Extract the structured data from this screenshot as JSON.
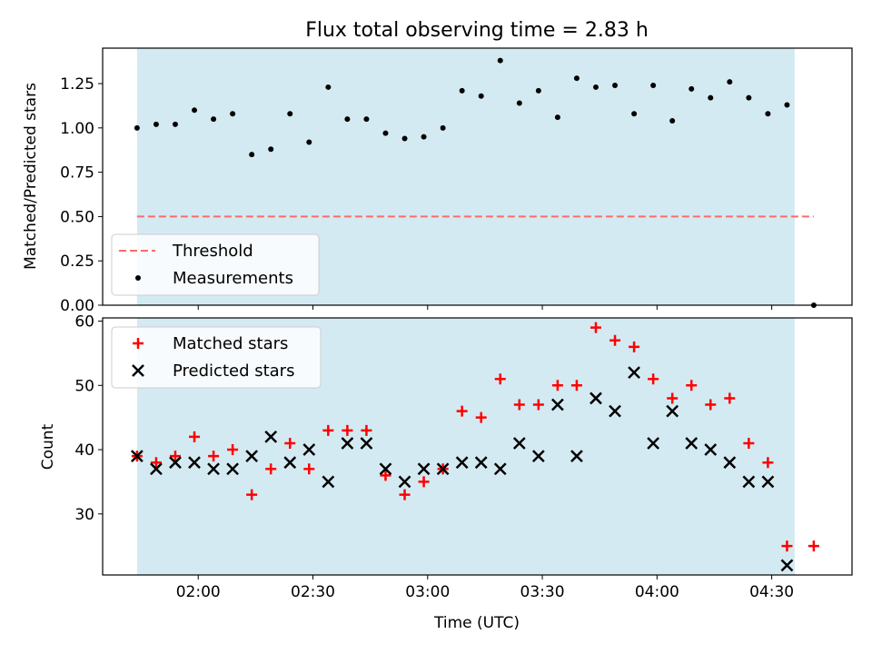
{
  "colors": {
    "span": "#add8e6",
    "threshold": "#ff6a6a",
    "matched": "#ff0000",
    "predicted": "#000000",
    "measurement": "#000000"
  },
  "chart_data": [
    {
      "type": "scatter",
      "title": "Flux total observing time = 2.83 h",
      "xlabel": "",
      "ylabel": "Matched/Predicted stars",
      "xlim": [
        "01:35",
        "04:51"
      ],
      "ylim": [
        0,
        1.45
      ],
      "yticks": [
        0.0,
        0.25,
        0.5,
        0.75,
        1.0,
        1.25
      ],
      "ytick_labels": [
        "0.00",
        "0.25",
        "0.50",
        "0.75",
        "1.00",
        "1.25"
      ],
      "shaded_span": [
        "01:44",
        "04:36"
      ],
      "legend": {
        "placement": "lower-left",
        "entries": [
          "Threshold",
          "Measurements"
        ]
      },
      "series": [
        {
          "name": "Threshold",
          "style": "dashed-line",
          "x": [
            "01:44",
            "04:41"
          ],
          "y": [
            0.5,
            0.5
          ]
        },
        {
          "name": "Measurements",
          "style": "dot",
          "x": [
            "01:44",
            "01:49",
            "01:54",
            "01:59",
            "02:04",
            "02:09",
            "02:14",
            "02:19",
            "02:24",
            "02:29",
            "02:34",
            "02:39",
            "02:44",
            "02:49",
            "02:54",
            "02:59",
            "03:04",
            "03:09",
            "03:14",
            "03:19",
            "03:24",
            "03:29",
            "03:34",
            "03:39",
            "03:44",
            "03:49",
            "03:54",
            "03:59",
            "04:04",
            "04:09",
            "04:14",
            "04:19",
            "04:24",
            "04:29",
            "04:34",
            "04:41"
          ],
          "y": [
            1.0,
            1.02,
            1.02,
            1.1,
            1.05,
            1.08,
            0.85,
            0.88,
            1.08,
            0.92,
            1.23,
            1.05,
            1.05,
            0.97,
            0.94,
            0.95,
            1.0,
            1.21,
            1.18,
            1.38,
            1.14,
            1.21,
            1.06,
            1.28,
            1.23,
            1.24,
            1.08,
            1.24,
            1.04,
            1.22,
            1.17,
            1.26,
            1.17,
            1.08,
            1.13,
            0.0
          ]
        }
      ]
    },
    {
      "type": "scatter",
      "title": "",
      "xlabel": "Time (UTC)",
      "ylabel": "Count",
      "xlim": [
        "01:35",
        "04:51"
      ],
      "ylim": [
        20.5,
        60.5
      ],
      "yticks": [
        30,
        40,
        50,
        60
      ],
      "ytick_labels": [
        "30",
        "40",
        "50",
        "60"
      ],
      "xticks": [
        "02:00",
        "02:30",
        "03:00",
        "03:30",
        "04:00",
        "04:30"
      ],
      "shaded_span": [
        "01:44",
        "04:36"
      ],
      "legend": {
        "placement": "top-left",
        "entries": [
          "Matched stars",
          "Predicted stars"
        ]
      },
      "series": [
        {
          "name": "Matched stars",
          "style": "plus",
          "x": [
            "01:44",
            "01:49",
            "01:54",
            "01:59",
            "02:04",
            "02:09",
            "02:14",
            "02:19",
            "02:24",
            "02:29",
            "02:34",
            "02:39",
            "02:44",
            "02:49",
            "02:54",
            "02:59",
            "03:04",
            "03:09",
            "03:14",
            "03:19",
            "03:24",
            "03:29",
            "03:34",
            "03:39",
            "03:44",
            "03:49",
            "03:54",
            "03:59",
            "04:04",
            "04:09",
            "04:14",
            "04:19",
            "04:24",
            "04:29",
            "04:34",
            "04:41"
          ],
          "y": [
            39,
            38,
            39,
            42,
            39,
            40,
            33,
            37,
            41,
            37,
            43,
            43,
            43,
            36,
            33,
            35,
            37,
            46,
            45,
            51,
            47,
            47,
            50,
            50,
            59,
            57,
            56,
            51,
            48,
            50,
            47,
            48,
            41,
            38,
            25,
            25
          ]
        },
        {
          "name": "Predicted stars",
          "style": "x",
          "x": [
            "01:44",
            "01:49",
            "01:54",
            "01:59",
            "02:04",
            "02:09",
            "02:14",
            "02:19",
            "02:24",
            "02:29",
            "02:34",
            "02:39",
            "02:44",
            "02:49",
            "02:54",
            "02:59",
            "03:04",
            "03:09",
            "03:14",
            "03:19",
            "03:24",
            "03:29",
            "03:34",
            "03:39",
            "03:44",
            "03:49",
            "03:54",
            "03:59",
            "04:04",
            "04:09",
            "04:14",
            "04:19",
            "04:24",
            "04:29",
            "04:34"
          ],
          "y": [
            39,
            37,
            38,
            38,
            37,
            37,
            39,
            42,
            38,
            40,
            35,
            41,
            41,
            37,
            35,
            37,
            37,
            38,
            38,
            37,
            41,
            39,
            47,
            39,
            48,
            46,
            52,
            41,
            46,
            41,
            40,
            38,
            35,
            35,
            22
          ]
        }
      ]
    }
  ]
}
